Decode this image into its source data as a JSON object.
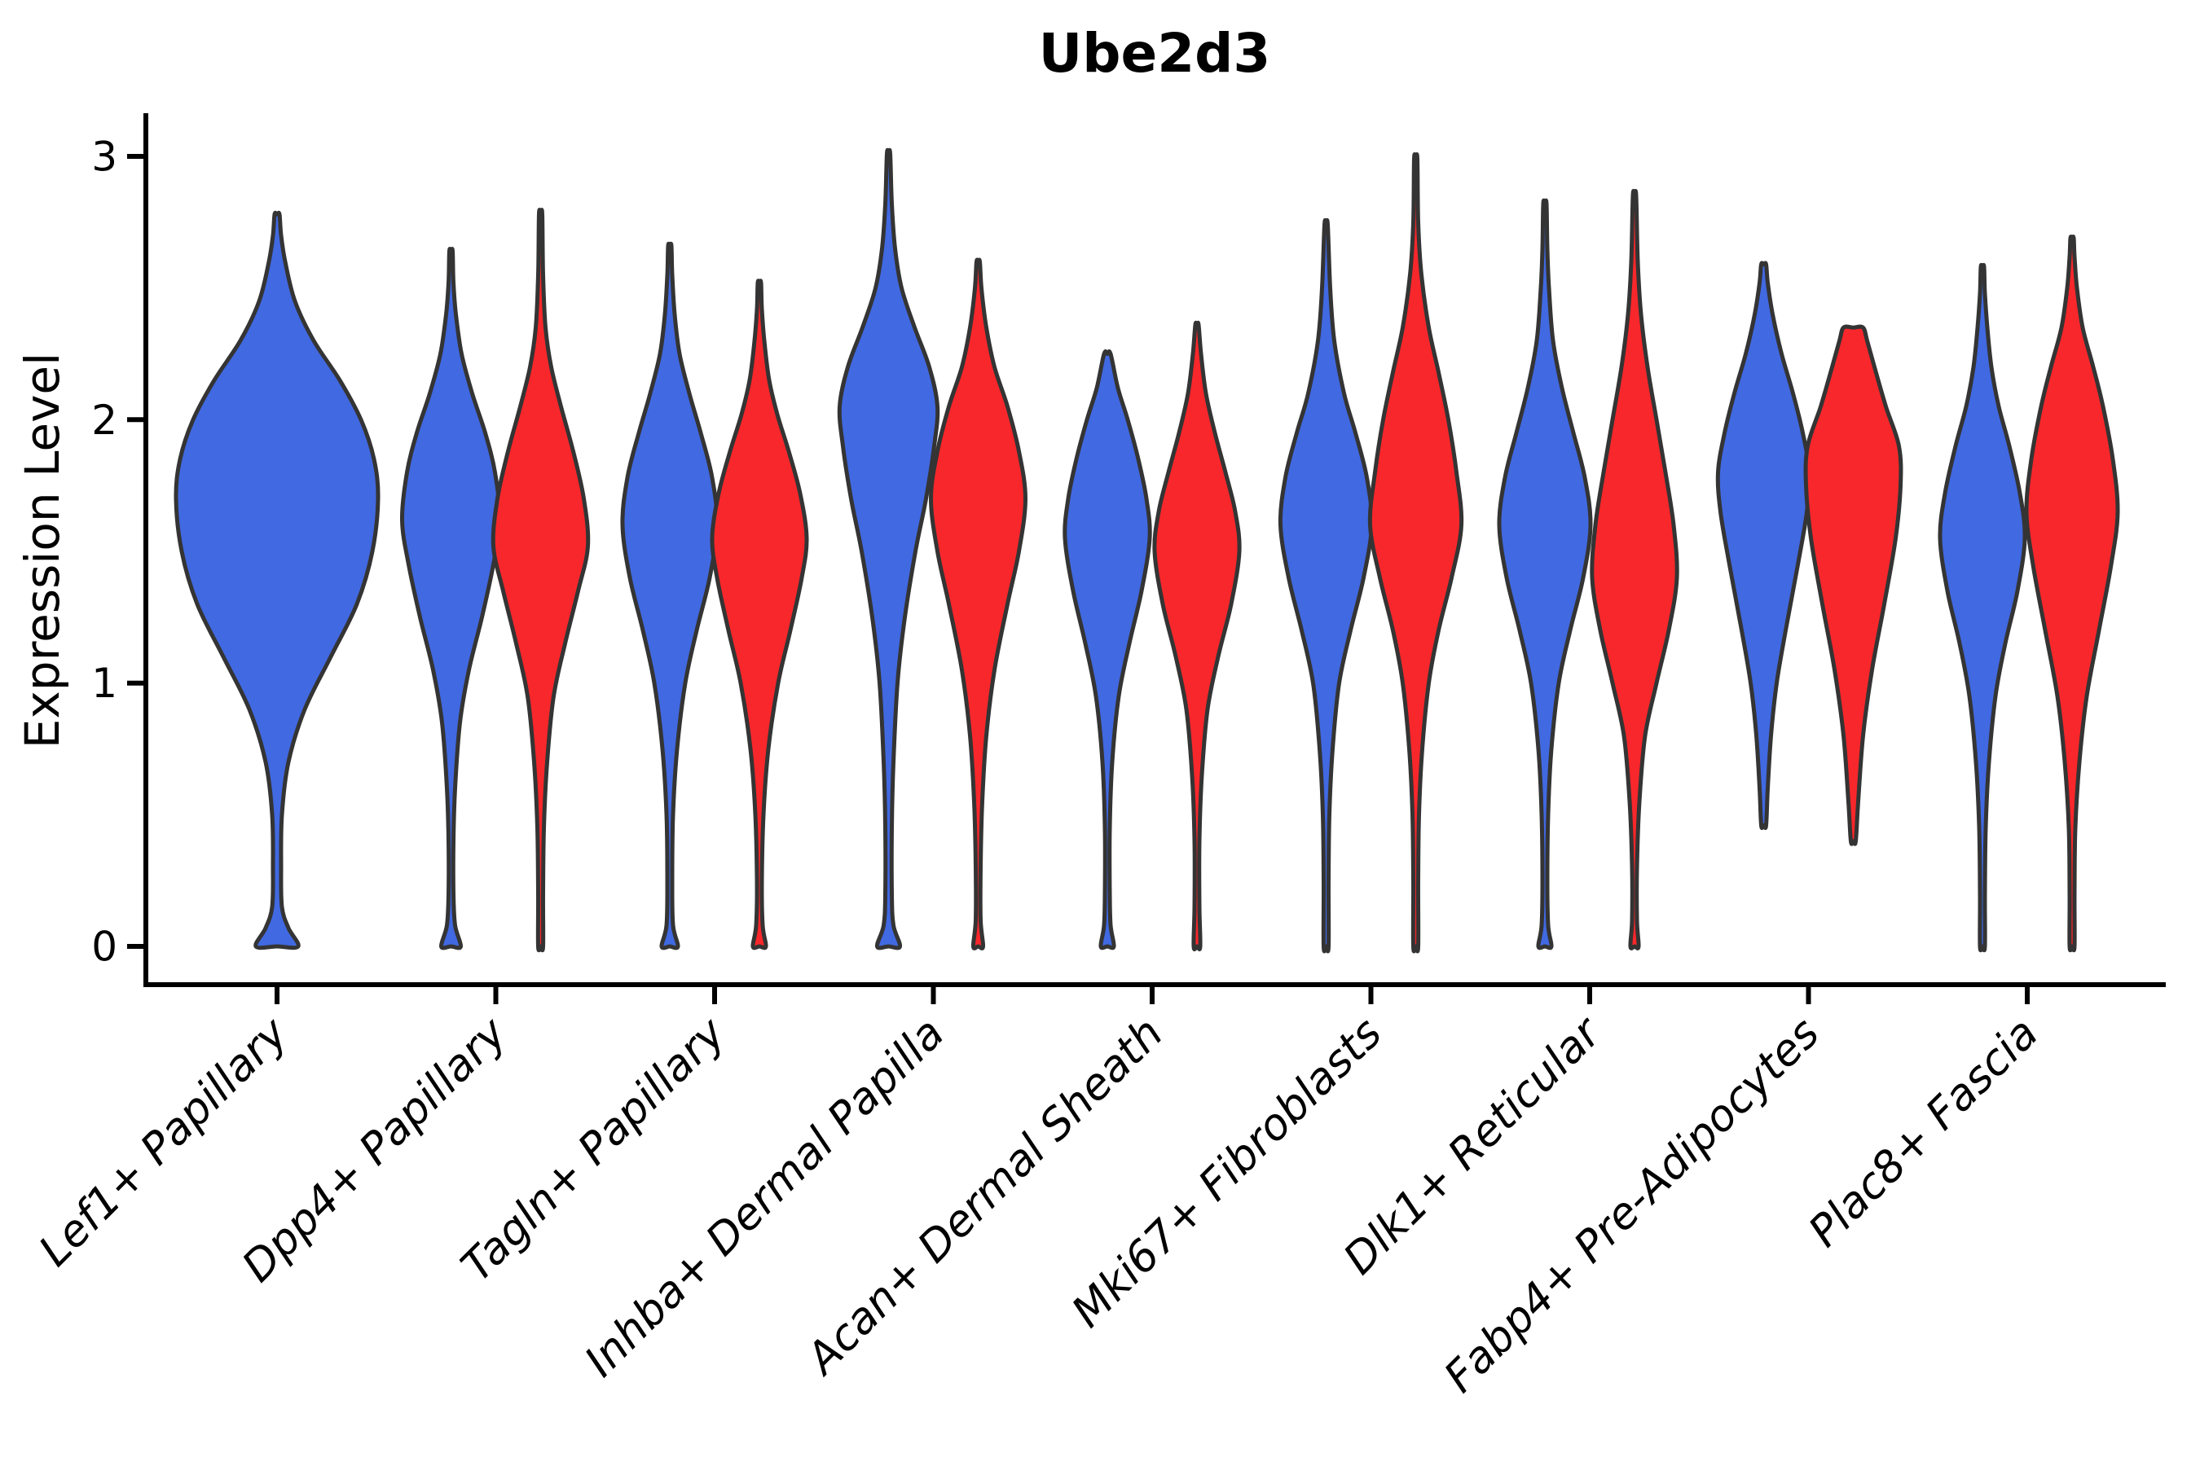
{
  "chart_data": {
    "type": "violin",
    "title": "Ube2d3",
    "ylabel": "Expression Level",
    "xlabel": "",
    "ylim": [
      0,
      3
    ],
    "yticks": [
      0,
      1,
      2,
      3
    ],
    "ytick_labels": [
      "0",
      "1",
      "2",
      "3"
    ],
    "grid": false,
    "legend": "none",
    "categories": [
      "Lef1+ Papillary",
      "Dpp4+ Papillary",
      "Tagln+ Papillary",
      "Inhba+ Dermal Papilla",
      "Acan+ Dermal Sheath",
      "Mki67+ Fibroblasts",
      "Dlk1+ Reticular",
      "Fabp4+ Pre-Adipocytes",
      "Plac8+ Fascia"
    ],
    "group_colors": {
      "group1": "#4169E1",
      "group2": "#F8272B"
    },
    "outline_color": "#343434",
    "violins": [
      {
        "category_index": 0,
        "category": "Lef1+ Papillary",
        "group": "group1",
        "position": "center",
        "min": 0,
        "max": 2.78,
        "peak_density_at": 1.7,
        "profile": [
          [
            0,
            26
          ],
          [
            0.07,
            14
          ],
          [
            0.15,
            6
          ],
          [
            0.3,
            5
          ],
          [
            0.5,
            6
          ],
          [
            0.7,
            14
          ],
          [
            0.9,
            34
          ],
          [
            1.1,
            66
          ],
          [
            1.3,
            98
          ],
          [
            1.5,
            117
          ],
          [
            1.7,
            124
          ],
          [
            1.85,
            119
          ],
          [
            2.0,
            103
          ],
          [
            2.15,
            77
          ],
          [
            2.3,
            45
          ],
          [
            2.45,
            22
          ],
          [
            2.6,
            10
          ],
          [
            2.7,
            5
          ],
          [
            2.78,
            3
          ]
        ]
      },
      {
        "category_index": 1,
        "category": "Dpp4+ Papillary",
        "group": "group1",
        "position": "left",
        "min": 0,
        "max": 2.64,
        "peak_density_at": 1.62,
        "profile": [
          [
            0,
            12
          ],
          [
            0.08,
            5
          ],
          [
            0.2,
            3
          ],
          [
            0.4,
            3
          ],
          [
            0.6,
            5
          ],
          [
            0.85,
            11
          ],
          [
            1.05,
            22
          ],
          [
            1.25,
            38
          ],
          [
            1.45,
            52
          ],
          [
            1.62,
            60
          ],
          [
            1.8,
            54
          ],
          [
            1.95,
            42
          ],
          [
            2.1,
            26
          ],
          [
            2.25,
            13
          ],
          [
            2.4,
            6
          ],
          [
            2.52,
            3
          ],
          [
            2.64,
            2
          ]
        ]
      },
      {
        "category_index": 1,
        "category": "Dpp4+ Papillary",
        "group": "group2",
        "position": "right",
        "min": 0,
        "max": 2.78,
        "peak_density_at": 1.52,
        "profile": [
          [
            0,
            3
          ],
          [
            0.2,
            3
          ],
          [
            0.45,
            4
          ],
          [
            0.7,
            8
          ],
          [
            0.95,
            16
          ],
          [
            1.15,
            30
          ],
          [
            1.35,
            46
          ],
          [
            1.52,
            58
          ],
          [
            1.7,
            53
          ],
          [
            1.88,
            40
          ],
          [
            2.05,
            25
          ],
          [
            2.2,
            13
          ],
          [
            2.35,
            6
          ],
          [
            2.55,
            3
          ],
          [
            2.78,
            2
          ]
        ]
      },
      {
        "category_index": 2,
        "category": "Tagln+ Papillary",
        "group": "group1",
        "position": "left",
        "min": 0,
        "max": 2.66,
        "peak_density_at": 1.6,
        "profile": [
          [
            0,
            10
          ],
          [
            0.08,
            4
          ],
          [
            0.25,
            3
          ],
          [
            0.5,
            4
          ],
          [
            0.75,
            9
          ],
          [
            1.0,
            19
          ],
          [
            1.2,
            33
          ],
          [
            1.4,
            49
          ],
          [
            1.6,
            58
          ],
          [
            1.78,
            52
          ],
          [
            1.95,
            38
          ],
          [
            2.1,
            24
          ],
          [
            2.25,
            12
          ],
          [
            2.4,
            6
          ],
          [
            2.55,
            3
          ],
          [
            2.66,
            2
          ]
        ]
      },
      {
        "category_index": 2,
        "category": "Tagln+ Papillary",
        "group": "group2",
        "position": "right",
        "min": 0,
        "max": 2.52,
        "peak_density_at": 1.55,
        "profile": [
          [
            0,
            8
          ],
          [
            0.08,
            4
          ],
          [
            0.25,
            3
          ],
          [
            0.5,
            5
          ],
          [
            0.75,
            11
          ],
          [
            1.0,
            23
          ],
          [
            1.2,
            38
          ],
          [
            1.4,
            52
          ],
          [
            1.55,
            58
          ],
          [
            1.72,
            50
          ],
          [
            1.88,
            36
          ],
          [
            2.02,
            22
          ],
          [
            2.15,
            12
          ],
          [
            2.3,
            6
          ],
          [
            2.42,
            3
          ],
          [
            2.52,
            2
          ]
        ]
      },
      {
        "category_index": 3,
        "category": "Inhba+ Dermal Papilla",
        "group": "group1",
        "position": "left",
        "min": 0,
        "max": 3.01,
        "peak_density_at": 2.05,
        "profile": [
          [
            0,
            14
          ],
          [
            0.08,
            6
          ],
          [
            0.2,
            4
          ],
          [
            0.45,
            4
          ],
          [
            0.7,
            6
          ],
          [
            1.0,
            11
          ],
          [
            1.25,
            20
          ],
          [
            1.5,
            33
          ],
          [
            1.7,
            46
          ],
          [
            1.9,
            56
          ],
          [
            2.05,
            60
          ],
          [
            2.2,
            50
          ],
          [
            2.35,
            32
          ],
          [
            2.5,
            16
          ],
          [
            2.65,
            8
          ],
          [
            2.82,
            4
          ],
          [
            3.01,
            2
          ]
        ]
      },
      {
        "category_index": 3,
        "category": "Inhba+ Dermal Papilla",
        "group": "group2",
        "position": "right",
        "min": 0,
        "max": 2.6,
        "peak_density_at": 1.7,
        "profile": [
          [
            0,
            6
          ],
          [
            0.1,
            3
          ],
          [
            0.3,
            3
          ],
          [
            0.55,
            5
          ],
          [
            0.8,
            10
          ],
          [
            1.05,
            20
          ],
          [
            1.3,
            36
          ],
          [
            1.5,
            50
          ],
          [
            1.7,
            58
          ],
          [
            1.88,
            50
          ],
          [
            2.05,
            36
          ],
          [
            2.2,
            20
          ],
          [
            2.35,
            10
          ],
          [
            2.5,
            4
          ],
          [
            2.6,
            2
          ]
        ]
      },
      {
        "category_index": 4,
        "category": "Acan+ Dermal Sheath",
        "group": "group1",
        "position": "left",
        "min": 0,
        "max": 2.25,
        "peak_density_at": 1.55,
        "profile": [
          [
            0,
            8
          ],
          [
            0.08,
            4
          ],
          [
            0.2,
            3
          ],
          [
            0.45,
            3
          ],
          [
            0.7,
            6
          ],
          [
            0.95,
            14
          ],
          [
            1.15,
            27
          ],
          [
            1.35,
            42
          ],
          [
            1.55,
            52
          ],
          [
            1.7,
            48
          ],
          [
            1.85,
            38
          ],
          [
            2.0,
            25
          ],
          [
            2.12,
            13
          ],
          [
            2.25,
            4
          ]
        ]
      },
      {
        "category_index": 4,
        "category": "Acan+ Dermal Sheath",
        "group": "group2",
        "position": "right",
        "min": 0,
        "max": 2.36,
        "peak_density_at": 1.5,
        "profile": [
          [
            0,
            4
          ],
          [
            0.15,
            3
          ],
          [
            0.4,
            3
          ],
          [
            0.65,
            6
          ],
          [
            0.9,
            13
          ],
          [
            1.1,
            26
          ],
          [
            1.3,
            42
          ],
          [
            1.5,
            52
          ],
          [
            1.65,
            47
          ],
          [
            1.8,
            35
          ],
          [
            1.95,
            22
          ],
          [
            2.1,
            11
          ],
          [
            2.25,
            5
          ],
          [
            2.36,
            2
          ]
        ]
      },
      {
        "category_index": 5,
        "category": "Mki67+ Fibroblasts",
        "group": "group1",
        "position": "left",
        "min": 0,
        "max": 2.74,
        "peak_density_at": 1.6,
        "profile": [
          [
            0,
            3
          ],
          [
            0.25,
            3
          ],
          [
            0.5,
            4
          ],
          [
            0.75,
            8
          ],
          [
            1.0,
            16
          ],
          [
            1.2,
            30
          ],
          [
            1.4,
            46
          ],
          [
            1.6,
            56
          ],
          [
            1.78,
            50
          ],
          [
            1.95,
            36
          ],
          [
            2.1,
            22
          ],
          [
            2.3,
            10
          ],
          [
            2.5,
            5
          ],
          [
            2.74,
            2
          ]
        ]
      },
      {
        "category_index": 5,
        "category": "Mki67+ Fibroblasts",
        "group": "group2",
        "position": "right",
        "min": 0,
        "max": 2.99,
        "peak_density_at": 1.6,
        "profile": [
          [
            0,
            3
          ],
          [
            0.25,
            3
          ],
          [
            0.5,
            4
          ],
          [
            0.75,
            8
          ],
          [
            1.0,
            16
          ],
          [
            1.2,
            28
          ],
          [
            1.4,
            44
          ],
          [
            1.6,
            56
          ],
          [
            1.8,
            50
          ],
          [
            2.0,
            40
          ],
          [
            2.18,
            28
          ],
          [
            2.35,
            16
          ],
          [
            2.55,
            7
          ],
          [
            2.75,
            3
          ],
          [
            2.99,
            2
          ]
        ]
      },
      {
        "category_index": 6,
        "category": "Dlk1+ Reticular",
        "group": "group1",
        "position": "left",
        "min": 0,
        "max": 2.82,
        "peak_density_at": 1.6,
        "profile": [
          [
            0,
            8
          ],
          [
            0.08,
            4
          ],
          [
            0.25,
            3
          ],
          [
            0.5,
            4
          ],
          [
            0.75,
            8
          ],
          [
            1.0,
            17
          ],
          [
            1.2,
            31
          ],
          [
            1.4,
            47
          ],
          [
            1.6,
            56
          ],
          [
            1.78,
            49
          ],
          [
            1.95,
            35
          ],
          [
            2.12,
            21
          ],
          [
            2.3,
            10
          ],
          [
            2.5,
            5
          ],
          [
            2.65,
            3
          ],
          [
            2.82,
            2
          ]
        ]
      },
      {
        "category_index": 6,
        "category": "Dlk1+ Reticular",
        "group": "group2",
        "position": "right",
        "min": 0,
        "max": 2.85,
        "peak_density_at": 1.4,
        "profile": [
          [
            0,
            5
          ],
          [
            0.1,
            3
          ],
          [
            0.3,
            3
          ],
          [
            0.55,
            6
          ],
          [
            0.8,
            13
          ],
          [
            1.0,
            27
          ],
          [
            1.2,
            42
          ],
          [
            1.4,
            52
          ],
          [
            1.6,
            48
          ],
          [
            1.8,
            38
          ],
          [
            2.0,
            27
          ],
          [
            2.2,
            16
          ],
          [
            2.4,
            8
          ],
          [
            2.6,
            4
          ],
          [
            2.85,
            2
          ]
        ]
      },
      {
        "category_index": 7,
        "category": "Fabp4+ Pre-Adipocytes",
        "group": "group1",
        "position": "left",
        "min": 0.46,
        "max": 2.59,
        "peak_density_at": 1.8,
        "profile": [
          [
            0.46,
            3
          ],
          [
            0.6,
            5
          ],
          [
            0.8,
            9
          ],
          [
            1.0,
            16
          ],
          [
            1.2,
            27
          ],
          [
            1.45,
            42
          ],
          [
            1.65,
            53
          ],
          [
            1.8,
            56
          ],
          [
            1.95,
            48
          ],
          [
            2.1,
            36
          ],
          [
            2.25,
            22
          ],
          [
            2.4,
            11
          ],
          [
            2.52,
            5
          ],
          [
            2.59,
            3
          ]
        ]
      },
      {
        "category_index": 7,
        "category": "Fabp4+ Pre-Adipocytes",
        "group": "group2",
        "position": "right",
        "min": 0.4,
        "max": 2.35,
        "peak_density_at": 1.75,
        "flat_top": true,
        "profile": [
          [
            0.4,
            3
          ],
          [
            0.55,
            6
          ],
          [
            0.8,
            12
          ],
          [
            1.05,
            23
          ],
          [
            1.3,
            38
          ],
          [
            1.55,
            52
          ],
          [
            1.75,
            58
          ],
          [
            1.9,
            56
          ],
          [
            2.05,
            40
          ],
          [
            2.2,
            26
          ],
          [
            2.3,
            17
          ],
          [
            2.35,
            12
          ]
        ]
      },
      {
        "category_index": 8,
        "category": "Plac8+ Fascia",
        "group": "group1",
        "position": "left",
        "min": 0,
        "max": 2.58,
        "peak_density_at": 1.55,
        "profile": [
          [
            0,
            3
          ],
          [
            0.2,
            3
          ],
          [
            0.45,
            4
          ],
          [
            0.7,
            8
          ],
          [
            0.95,
            16
          ],
          [
            1.15,
            28
          ],
          [
            1.35,
            43
          ],
          [
            1.55,
            52
          ],
          [
            1.72,
            46
          ],
          [
            1.9,
            33
          ],
          [
            2.05,
            20
          ],
          [
            2.2,
            11
          ],
          [
            2.35,
            6
          ],
          [
            2.48,
            3
          ],
          [
            2.58,
            2
          ]
        ]
      },
      {
        "category_index": 8,
        "category": "Plac8+ Fascia",
        "group": "group2",
        "position": "right",
        "min": 0,
        "max": 2.69,
        "peak_density_at": 1.65,
        "profile": [
          [
            0,
            3
          ],
          [
            0.2,
            3
          ],
          [
            0.45,
            4
          ],
          [
            0.7,
            9
          ],
          [
            0.95,
            18
          ],
          [
            1.2,
            33
          ],
          [
            1.45,
            48
          ],
          [
            1.65,
            56
          ],
          [
            1.85,
            50
          ],
          [
            2.05,
            38
          ],
          [
            2.2,
            26
          ],
          [
            2.35,
            13
          ],
          [
            2.5,
            6
          ],
          [
            2.62,
            3
          ],
          [
            2.69,
            2
          ]
        ]
      }
    ]
  }
}
